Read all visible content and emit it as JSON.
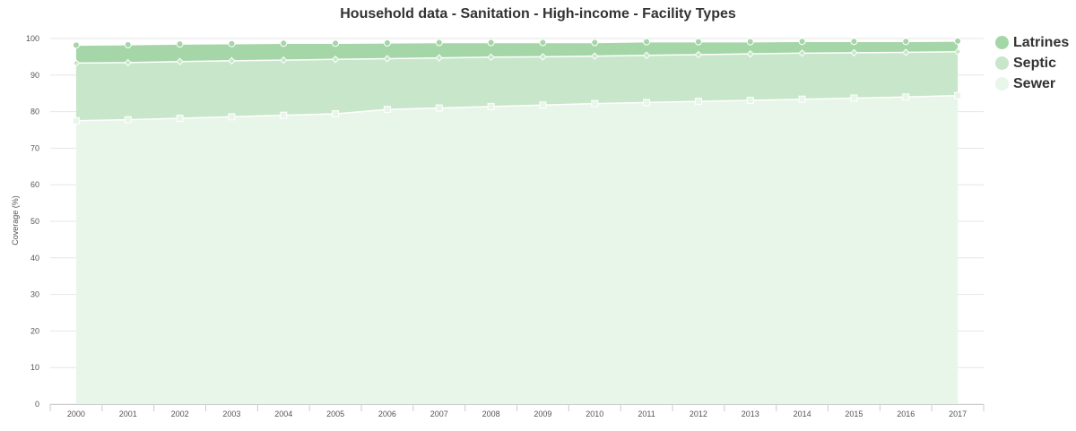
{
  "chart_data": {
    "type": "area",
    "stacked": true,
    "title": "Household data - Sanitation - High-income - Facility Types",
    "xlabel": "",
    "ylabel": "Coverage (%)",
    "ylim": [
      0,
      100
    ],
    "yticks": [
      0,
      10,
      20,
      30,
      40,
      50,
      60,
      70,
      80,
      90,
      100
    ],
    "grid": true,
    "legend_position": "right",
    "categories": [
      "2000",
      "2001",
      "2002",
      "2003",
      "2004",
      "2005",
      "2006",
      "2007",
      "2008",
      "2009",
      "2010",
      "2011",
      "2012",
      "2013",
      "2014",
      "2015",
      "2016",
      "2017"
    ],
    "series": [
      {
        "name": "Sewer",
        "color": "#e8f5e9",
        "line_color": "#ffffff",
        "marker": "square",
        "values": [
          77.5,
          77.8,
          78.2,
          78.6,
          79.0,
          79.4,
          80.6,
          81.0,
          81.4,
          81.8,
          82.2,
          82.5,
          82.8,
          83.1,
          83.4,
          83.7,
          84.0,
          84.4
        ]
      },
      {
        "name": "Septic",
        "color": "#c8e6c9",
        "line_color": "#ffffff",
        "marker": "diamond",
        "values": [
          15.8,
          15.6,
          15.5,
          15.3,
          15.1,
          14.9,
          13.9,
          13.7,
          13.5,
          13.2,
          13.0,
          12.9,
          12.8,
          12.7,
          12.6,
          12.4,
          12.2,
          12.0
        ]
      },
      {
        "name": "Latrines",
        "color": "#a5d6a7",
        "line_color": "#ffffff",
        "marker": "circle",
        "values": [
          4.9,
          4.9,
          4.8,
          4.7,
          4.6,
          4.4,
          4.3,
          4.2,
          4.0,
          3.9,
          3.7,
          3.7,
          3.5,
          3.3,
          3.2,
          3.1,
          3.0,
          2.9
        ]
      }
    ],
    "legend": [
      {
        "name": "Latrines",
        "color": "#a5d6a7"
      },
      {
        "name": "Septic",
        "color": "#c8e6c9"
      },
      {
        "name": "Sewer",
        "color": "#e8f5e9"
      }
    ]
  }
}
